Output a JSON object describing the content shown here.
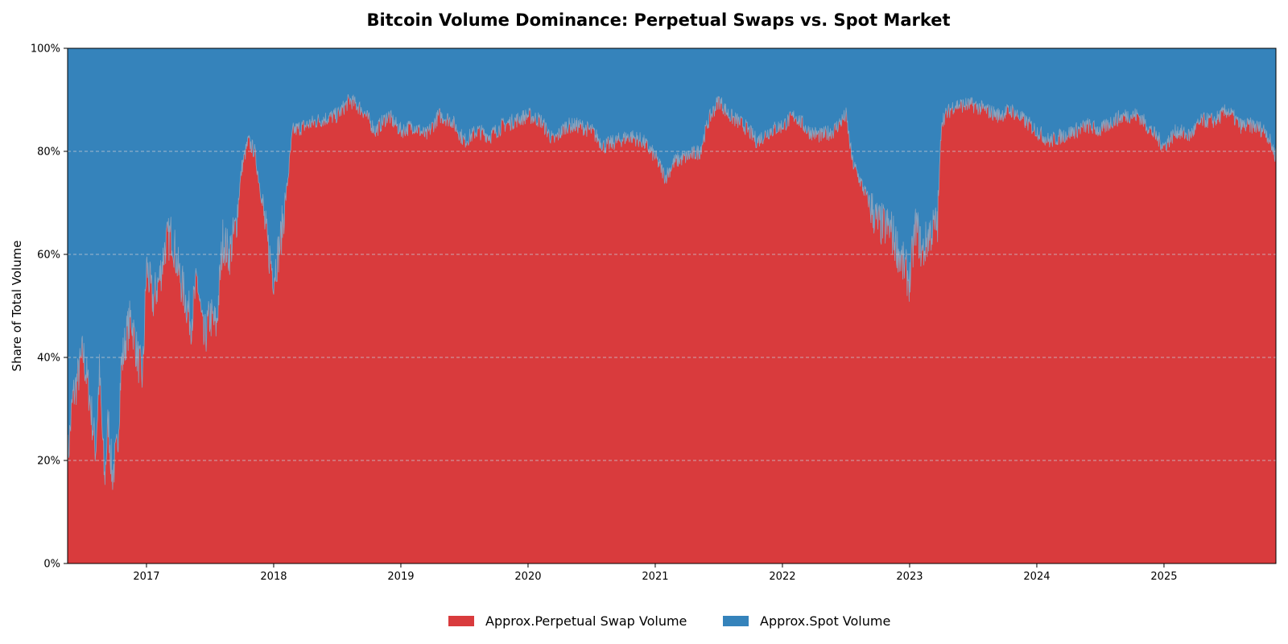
{
  "chart_data": {
    "type": "area",
    "stacked": true,
    "normalized": true,
    "title": "Bitcoin Volume Dominance: Perpetual Swaps vs. Spot Market",
    "xlabel": "",
    "ylabel": "Share of Total Volume",
    "xlim": [
      2016.38,
      2025.88
    ],
    "ylim": [
      0,
      100
    ],
    "y_ticks": [
      {
        "value": 0,
        "label": "0%"
      },
      {
        "value": 20,
        "label": "20%"
      },
      {
        "value": 40,
        "label": "40%"
      },
      {
        "value": 60,
        "label": "60%"
      },
      {
        "value": 80,
        "label": "80%"
      },
      {
        "value": 100,
        "label": "100%"
      }
    ],
    "x_ticks": [
      {
        "value": 2017,
        "label": "2017"
      },
      {
        "value": 2018,
        "label": "2018"
      },
      {
        "value": 2019,
        "label": "2019"
      },
      {
        "value": 2020,
        "label": "2020"
      },
      {
        "value": 2021,
        "label": "2021"
      },
      {
        "value": 2022,
        "label": "2022"
      },
      {
        "value": 2023,
        "label": "2023"
      },
      {
        "value": 2024,
        "label": "2024"
      },
      {
        "value": 2025,
        "label": "2025"
      }
    ],
    "grid": "horizontal-dashed",
    "legend_position": "bottom-center",
    "series": [
      {
        "name": "Approx.Perpetual Swap Volume",
        "color": "#d93b3d",
        "role": "lower"
      },
      {
        "name": "Approx.Spot Volume",
        "color": "#3583bb",
        "role": "upper"
      }
    ],
    "perp_share_points": [
      [
        2016.38,
        20
      ],
      [
        2016.42,
        32
      ],
      [
        2016.46,
        36
      ],
      [
        2016.5,
        41
      ],
      [
        2016.55,
        33
      ],
      [
        2016.6,
        22
      ],
      [
        2016.63,
        37
      ],
      [
        2016.67,
        16
      ],
      [
        2016.7,
        28
      ],
      [
        2016.73,
        17
      ],
      [
        2016.77,
        22
      ],
      [
        2016.8,
        38
      ],
      [
        2016.84,
        44
      ],
      [
        2016.88,
        48
      ],
      [
        2016.93,
        40
      ],
      [
        2016.97,
        36
      ],
      [
        2017.0,
        58
      ],
      [
        2017.05,
        51
      ],
      [
        2017.1,
        55
      ],
      [
        2017.15,
        62
      ],
      [
        2017.2,
        64
      ],
      [
        2017.25,
        57
      ],
      [
        2017.3,
        52
      ],
      [
        2017.35,
        47
      ],
      [
        2017.4,
        55
      ],
      [
        2017.45,
        43
      ],
      [
        2017.5,
        48
      ],
      [
        2017.55,
        46
      ],
      [
        2017.6,
        63
      ],
      [
        2017.65,
        60
      ],
      [
        2017.7,
        65
      ],
      [
        2017.75,
        77
      ],
      [
        2017.8,
        82
      ],
      [
        2017.85,
        80
      ],
      [
        2017.9,
        72
      ],
      [
        2017.95,
        62
      ],
      [
        2018.0,
        56
      ],
      [
        2018.05,
        62
      ],
      [
        2018.1,
        72
      ],
      [
        2018.15,
        84
      ],
      [
        2018.25,
        85
      ],
      [
        2018.35,
        86
      ],
      [
        2018.5,
        87
      ],
      [
        2018.6,
        90
      ],
      [
        2018.7,
        88
      ],
      [
        2018.8,
        84
      ],
      [
        2018.9,
        87
      ],
      [
        2019.0,
        84
      ],
      [
        2019.1,
        85
      ],
      [
        2019.2,
        83
      ],
      [
        2019.3,
        87
      ],
      [
        2019.4,
        86
      ],
      [
        2019.5,
        82
      ],
      [
        2019.6,
        84
      ],
      [
        2019.7,
        83
      ],
      [
        2019.8,
        85
      ],
      [
        2019.9,
        86
      ],
      [
        2020.0,
        87
      ],
      [
        2020.1,
        86
      ],
      [
        2020.2,
        82
      ],
      [
        2020.3,
        85
      ],
      [
        2020.4,
        85
      ],
      [
        2020.5,
        84
      ],
      [
        2020.6,
        81
      ],
      [
        2020.7,
        82
      ],
      [
        2020.8,
        83
      ],
      [
        2020.9,
        82
      ],
      [
        2021.0,
        79
      ],
      [
        2021.08,
        75
      ],
      [
        2021.15,
        78
      ],
      [
        2021.25,
        79
      ],
      [
        2021.35,
        80
      ],
      [
        2021.42,
        86
      ],
      [
        2021.5,
        90
      ],
      [
        2021.58,
        87
      ],
      [
        2021.7,
        85
      ],
      [
        2021.8,
        82
      ],
      [
        2021.9,
        84
      ],
      [
        2022.0,
        85
      ],
      [
        2022.1,
        87
      ],
      [
        2022.2,
        84
      ],
      [
        2022.3,
        83
      ],
      [
        2022.4,
        84
      ],
      [
        2022.5,
        87
      ],
      [
        2022.55,
        78
      ],
      [
        2022.65,
        72
      ],
      [
        2022.75,
        66
      ],
      [
        2022.85,
        65
      ],
      [
        2022.95,
        58
      ],
      [
        2023.0,
        55
      ],
      [
        2023.05,
        66
      ],
      [
        2023.1,
        60
      ],
      [
        2023.15,
        64
      ],
      [
        2023.22,
        66
      ],
      [
        2023.25,
        86
      ],
      [
        2023.35,
        89
      ],
      [
        2023.5,
        89
      ],
      [
        2023.6,
        88
      ],
      [
        2023.7,
        87
      ],
      [
        2023.8,
        88
      ],
      [
        2023.9,
        86
      ],
      [
        2024.0,
        84
      ],
      [
        2024.1,
        82
      ],
      [
        2024.2,
        83
      ],
      [
        2024.3,
        84
      ],
      [
        2024.4,
        85
      ],
      [
        2024.5,
        84
      ],
      [
        2024.6,
        86
      ],
      [
        2024.7,
        87
      ],
      [
        2024.8,
        87
      ],
      [
        2024.9,
        84
      ],
      [
        2025.0,
        81
      ],
      [
        2025.1,
        84
      ],
      [
        2025.2,
        83
      ],
      [
        2025.3,
        86
      ],
      [
        2025.4,
        86
      ],
      [
        2025.5,
        88
      ],
      [
        2025.6,
        85
      ],
      [
        2025.7,
        85
      ],
      [
        2025.8,
        84
      ],
      [
        2025.88,
        79
      ]
    ]
  }
}
